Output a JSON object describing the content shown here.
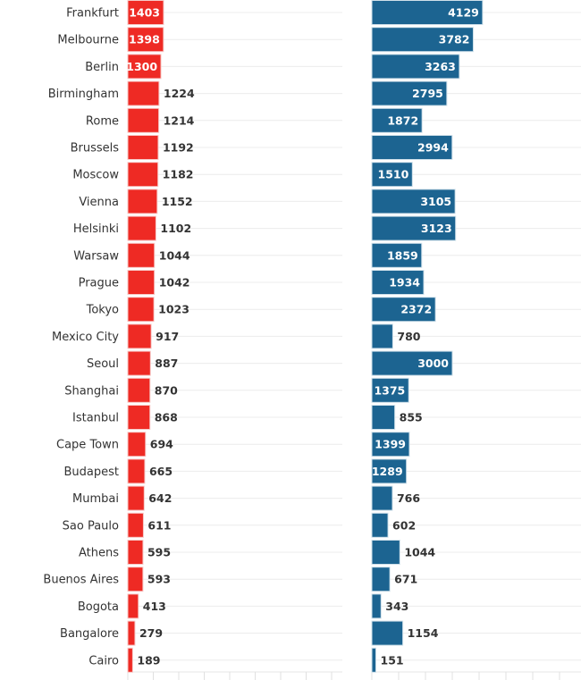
{
  "chart_data": [
    {
      "type": "bar",
      "orientation": "horizontal",
      "color": "#ee2a24",
      "categories": [
        "Frankfurt",
        "Melbourne",
        "Berlin",
        "Birmingham",
        "Rome",
        "Brussels",
        "Moscow",
        "Vienna",
        "Helsinki",
        "Warsaw",
        "Prague",
        "Tokyo",
        "Mexico City",
        "Seoul",
        "Shanghai",
        "Istanbul",
        "Cape Town",
        "Budapest",
        "Mumbai",
        "Sao Paulo",
        "Athens",
        "Buenos Aires",
        "Bogota",
        "Bangalore",
        "Cairo"
      ],
      "values": [
        1403,
        1398,
        1300,
        1224,
        1214,
        1192,
        1182,
        1152,
        1102,
        1044,
        1042,
        1023,
        917,
        887,
        870,
        868,
        694,
        665,
        642,
        611,
        595,
        593,
        413,
        279,
        189
      ],
      "grid": true
    },
    {
      "type": "bar",
      "orientation": "horizontal",
      "color": "#1c6491",
      "categories": [
        "Frankfurt",
        "Melbourne",
        "Berlin",
        "Birmingham",
        "Rome",
        "Brussels",
        "Moscow",
        "Vienna",
        "Helsinki",
        "Warsaw",
        "Prague",
        "Tokyo",
        "Mexico City",
        "Seoul",
        "Shanghai",
        "Istanbul",
        "Cape Town",
        "Budapest",
        "Mumbai",
        "Sao Paulo",
        "Athens",
        "Buenos Aires",
        "Bogota",
        "Bangalore",
        "Cairo"
      ],
      "values": [
        4129,
        3782,
        3263,
        2795,
        1872,
        2994,
        1510,
        3105,
        3123,
        1859,
        1934,
        2372,
        780,
        3000,
        1375,
        855,
        1399,
        1289,
        766,
        602,
        1044,
        671,
        343,
        1154,
        151
      ],
      "grid": true
    }
  ]
}
